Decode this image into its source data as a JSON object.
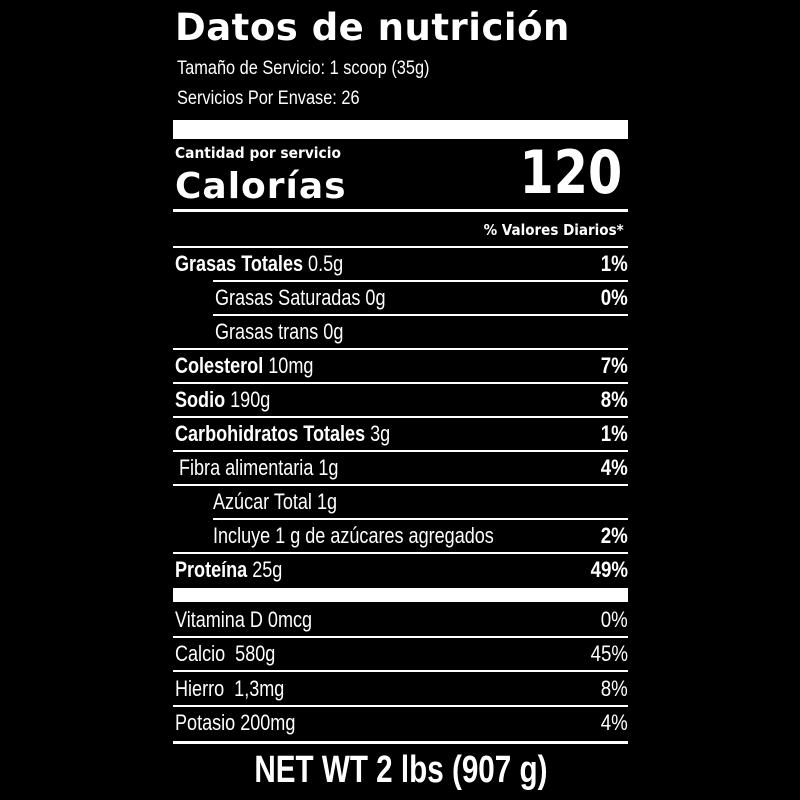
{
  "title": "Datos de nutrición",
  "serving_size": "Tamaño de Servicio: 1 scoop (35g)",
  "servings_per_container": "Servicios Por Envase: 26",
  "amount_per_serving": "Cantidad por servicio",
  "calories_label": "Calorías",
  "calories_value": "120",
  "daily_values_header": "% Valores Diarios*",
  "nutrients": [
    {
      "name": "Grasas Totales",
      "amount": "0.5g",
      "dv": "1%"
    },
    {
      "name": "Grasas Saturadas",
      "amount": "0g",
      "dv": "0%"
    },
    {
      "name": "Grasas trans",
      "amount": "0g",
      "dv": ""
    },
    {
      "name": "Colesterol",
      "amount": "10mg",
      "dv": "7%"
    },
    {
      "name": "Sodio",
      "amount": "190g",
      "dv": "8%"
    },
    {
      "name": "Carbohidratos Totales",
      "amount": "3g",
      "dv": "1%"
    },
    {
      "name": "Fibra alimentaria",
      "amount": "1g",
      "dv": "4%"
    },
    {
      "name": "Azúcar Total",
      "amount": "1g",
      "dv": ""
    },
    {
      "name": "Incluye 1 g de azúcares agregados",
      "amount": "",
      "dv": "2%"
    },
    {
      "name": "Proteína",
      "amount": "25g",
      "dv": "49%"
    }
  ],
  "vitamins": [
    {
      "name": "Vitamina D",
      "amount": "0mcg",
      "dv": "0%"
    },
    {
      "name": "Calcio",
      "amount": "580g",
      "dv": "45%"
    },
    {
      "name": "Hierro",
      "amount": "1,3mg",
      "dv": "8%"
    },
    {
      "name": "Potasio",
      "amount": "200mg",
      "dv": "4%"
    }
  ],
  "net_weight": "NET WT 2 lbs (907 g)"
}
